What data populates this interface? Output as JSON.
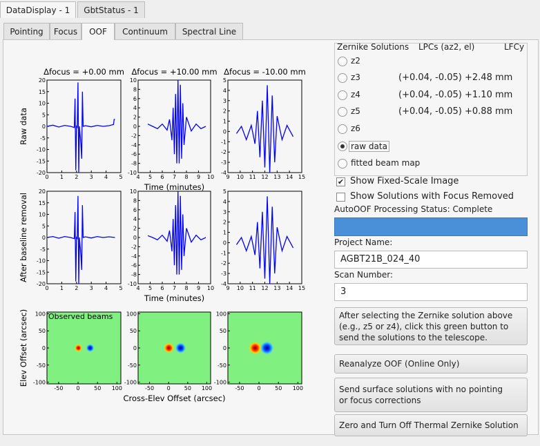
{
  "window_tabs": [
    "DataDisplay - 1",
    "GbtStatus - 1"
  ],
  "tabs": [
    "Pointing",
    "Focus",
    "OOF",
    "Continuum",
    "Spectral Line"
  ],
  "active_tab": 2,
  "chart_data": [
    {
      "type": "line",
      "title": "Δfocus = +0.00 mm",
      "ylabel": "Raw data",
      "xlim": [
        0,
        5
      ],
      "xticks": [
        0,
        1,
        2,
        3,
        4,
        5
      ],
      "ylim": [
        -20,
        20
      ],
      "yticks": [
        -20,
        -15,
        -10,
        -5,
        0,
        5,
        10,
        15,
        20
      ],
      "color": "#0000ff",
      "x": [
        0,
        0.4,
        0.8,
        1.2,
        1.6,
        1.85,
        1.9,
        1.95,
        2.0,
        2.05,
        2.1,
        2.15,
        2.2,
        2.3,
        2.35,
        2.4,
        2.45,
        2.6,
        3.0,
        3.4,
        3.8,
        4.2,
        4.5,
        4.55,
        4.6
      ],
      "values": [
        0,
        0.5,
        -0.3,
        0.4,
        0,
        -0.5,
        12,
        -19,
        0,
        -0.4,
        19,
        -20,
        0,
        -8,
        -14,
        15,
        0,
        0.3,
        -0.2,
        0.4,
        0,
        0.3,
        0.8,
        3,
        3
      ]
    },
    {
      "type": "line",
      "title": "Δfocus = +10.00 mm",
      "xlabel": "Time (minutes)",
      "xlim": [
        4,
        10
      ],
      "xticks": [
        4,
        5,
        6,
        7,
        8,
        9,
        10
      ],
      "ylim": [
        -10,
        10
      ],
      "yticks": [
        -10,
        -8,
        -6,
        -4,
        -2,
        0,
        2,
        4,
        6,
        8,
        10
      ],
      "color": "#0000ff",
      "x": [
        4.8,
        5.2,
        5.6,
        6.0,
        6.4,
        6.6,
        6.8,
        6.9,
        7.0,
        7.1,
        7.2,
        7.3,
        7.4,
        7.5,
        7.6,
        7.7,
        7.8,
        8.0,
        8.4,
        8.8,
        9.2,
        9.6
      ],
      "values": [
        0.5,
        0,
        -0.5,
        0.5,
        -0.8,
        1.5,
        -3,
        4,
        -6,
        7,
        -8,
        10,
        -8,
        9,
        -7,
        5,
        -4,
        2,
        -1,
        0.5,
        -0.5,
        0
      ]
    },
    {
      "type": "line",
      "title": "Δfocus = -10.00 mm",
      "xlim": [
        9,
        15
      ],
      "xticks": [
        9,
        10,
        11,
        12,
        13,
        14,
        15
      ],
      "ylim": [
        -4,
        5
      ],
      "yticks": [
        -4,
        -3,
        -2,
        -1,
        0,
        1,
        2,
        3,
        4,
        5
      ],
      "color": "#0000ff",
      "x": [
        9.7,
        10.1,
        10.5,
        10.9,
        11.2,
        11.4,
        11.6,
        11.8,
        12.0,
        12.2,
        12.4,
        12.6,
        12.8,
        13.0,
        13.4,
        13.8,
        14.3
      ],
      "values": [
        -0.2,
        0.5,
        -0.8,
        0.6,
        -1.2,
        2,
        -2.5,
        3,
        -3.5,
        4.5,
        -4,
        3.5,
        -3,
        1.5,
        -0.8,
        0.6,
        -0.5
      ]
    },
    {
      "type": "line",
      "ylabel": "After baseline removal",
      "xlim": [
        0,
        5
      ],
      "xticks": [
        0,
        1,
        2,
        3,
        4,
        5
      ],
      "ylim": [
        -20,
        20
      ],
      "yticks": [
        -20,
        -15,
        -10,
        -5,
        0,
        5,
        10,
        15,
        20
      ],
      "color": "#0000ff",
      "x": [
        0,
        0.4,
        0.8,
        1.2,
        1.6,
        1.85,
        1.9,
        1.95,
        2.0,
        2.05,
        2.1,
        2.15,
        2.2,
        2.3,
        2.35,
        2.4,
        2.45,
        2.6,
        3.0,
        3.4,
        3.8,
        4.2,
        4.6
      ],
      "values": [
        0,
        0.4,
        -0.3,
        0.4,
        0,
        -0.5,
        11,
        -19,
        0,
        -0.4,
        18,
        -20,
        0,
        -8,
        -14,
        14,
        0,
        0.3,
        -0.2,
        0.4,
        0,
        0.3,
        0
      ]
    },
    {
      "type": "line",
      "xlabel": "Time (minutes)",
      "xlim": [
        4,
        10
      ],
      "xticks": [
        4,
        5,
        6,
        7,
        8,
        9,
        10
      ],
      "ylim": [
        -10,
        10
      ],
      "yticks": [
        -10,
        -8,
        -6,
        -4,
        -2,
        0,
        2,
        4,
        6,
        8,
        10
      ],
      "color": "#0000ff",
      "x": [
        4.8,
        5.2,
        5.6,
        6.0,
        6.4,
        6.6,
        6.8,
        6.9,
        7.0,
        7.1,
        7.2,
        7.3,
        7.4,
        7.5,
        7.6,
        7.7,
        7.8,
        8.0,
        8.4,
        8.8,
        9.2,
        9.6
      ],
      "values": [
        0.4,
        0,
        -0.5,
        0.5,
        -0.8,
        1.5,
        -3,
        4,
        -6,
        7,
        -8,
        10,
        -8,
        9,
        -7,
        5,
        -4,
        2,
        -1,
        0.5,
        -0.5,
        0
      ]
    },
    {
      "type": "line",
      "xlim": [
        9,
        15
      ],
      "xticks": [
        9,
        10,
        11,
        12,
        13,
        14,
        15
      ],
      "ylim": [
        -4,
        5
      ],
      "yticks": [
        -4,
        -3,
        -2,
        -1,
        0,
        1,
        2,
        3,
        4,
        5
      ],
      "color": "#0000ff",
      "x": [
        9.7,
        10.1,
        10.5,
        10.9,
        11.2,
        11.4,
        11.6,
        11.8,
        12.0,
        12.2,
        12.4,
        12.6,
        12.8,
        13.0,
        13.4,
        13.8,
        14.3
      ],
      "values": [
        -0.2,
        0.5,
        -0.8,
        0.6,
        -1.2,
        2,
        -2.5,
        3,
        -3.5,
        4.5,
        -4,
        3.5,
        -3,
        1.5,
        -0.8,
        0.6,
        -0.5
      ]
    },
    {
      "type": "heatmap",
      "ylabel": "Elev Offset (arcsec)",
      "annotation": "Observed beams",
      "xlim": [
        -80,
        110
      ],
      "xticks": [
        -50,
        0,
        50,
        100
      ],
      "ylim": [
        -105,
        105
      ],
      "yticks": [
        -100,
        -50,
        0,
        50,
        100
      ]
    },
    {
      "type": "heatmap",
      "xlabel": "Cross-Elev Offset (arcsec)",
      "xlim": [
        -80,
        110
      ],
      "xticks": [
        -50,
        0,
        50,
        100
      ],
      "ylim": [
        -105,
        105
      ],
      "yticks": [
        -100,
        -50,
        0,
        50,
        100
      ]
    },
    {
      "type": "heatmap",
      "xlim": [
        -80,
        110
      ],
      "xticks": [
        -50,
        0,
        50,
        100
      ],
      "ylim": [
        -105,
        105
      ],
      "yticks": [
        -100,
        -50,
        0,
        50,
        100
      ]
    }
  ],
  "zernike": {
    "title": "Zernike Solutions",
    "col_headers": [
      "LPCs (az2, el)",
      "LFCy"
    ],
    "rows": [
      {
        "label": "z2"
      },
      {
        "label": "z3",
        "lpc": "(+0.04, -0.05)",
        "lfc": "+2.48 mm"
      },
      {
        "label": "z4",
        "lpc": "(+0.04, -0.05)",
        "lfc": "+1.10 mm"
      },
      {
        "label": "z5",
        "lpc": "(+0.04, -0.05)",
        "lfc": "+0.88 mm"
      },
      {
        "label": "z6"
      },
      {
        "label": "raw data"
      },
      {
        "label": "fitted beam map"
      }
    ],
    "selected": 5
  },
  "checkboxes": [
    {
      "label": "Show Fixed-Scale Image",
      "checked": true
    },
    {
      "label": "Show Solutions with Focus Removed",
      "checked": false
    }
  ],
  "status": "AutoOOF Processing Status: Complete",
  "project_label": "Project Name:",
  "project_value": "AGBT21B_024_40",
  "scan_label": "Scan Number:",
  "scan_value": "3",
  "buttons": [
    "After selecting the Zernike solution above\n(e.g., z5 or z4), click this green button to\nsend the solutions to the telescope.",
    "Reanalyze OOF (Online Only)",
    "Send surface solutions with no pointing\nor focus corrections",
    "Zero and Turn Off Thermal Zernike Solution"
  ]
}
